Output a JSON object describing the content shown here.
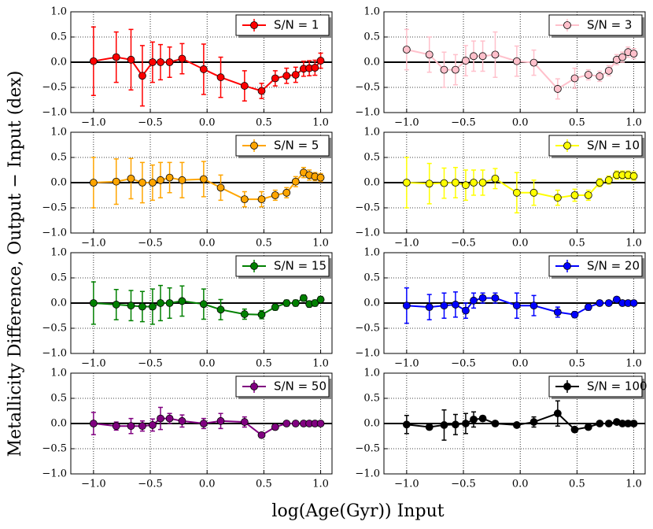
{
  "xlabel": "log(Age(Gyr)) Input",
  "ylabel": "Metallicity Difference, Output − Input (dex)",
  "chart_data": [
    {
      "type": "errorbar",
      "legend": "upper right",
      "grid": true,
      "reference_line": 0,
      "x": [
        -1.0,
        -0.8,
        -0.67,
        -0.57,
        -0.48,
        -0.41,
        -0.33,
        -0.22,
        -0.03,
        0.12,
        0.33,
        0.48,
        0.6,
        0.7,
        0.78,
        0.85,
        0.9,
        0.95,
        1.0
      ],
      "xlim": [
        -1.2,
        1.1
      ],
      "ylim": [
        -1,
        1
      ],
      "xticks": [
        {
          "value": -1,
          "label": "−1.0"
        },
        {
          "value": -0.5,
          "label": "−0.5"
        },
        {
          "value": 0,
          "label": "0.0"
        },
        {
          "value": 0.5,
          "label": "0.5"
        },
        {
          "value": 1,
          "label": "1.0"
        }
      ],
      "yticks": [
        {
          "value": -1,
          "label": "−1.0"
        },
        {
          "value": -0.5,
          "label": "−0.5"
        },
        {
          "value": 0,
          "label": "0.0"
        },
        {
          "value": 0.5,
          "label": "0.5"
        },
        {
          "value": 1,
          "label": "1.0"
        }
      ],
      "series": [
        {
          "name": "S/N = 1",
          "color": "#ff0000",
          "values": [
            0.02,
            0.1,
            0.05,
            -0.27,
            0.0,
            0.0,
            0.0,
            0.07,
            -0.14,
            -0.3,
            -0.47,
            -0.57,
            -0.32,
            -0.27,
            -0.25,
            -0.13,
            -0.12,
            -0.11,
            0.03
          ],
          "errors": [
            0.68,
            0.5,
            0.6,
            0.6,
            0.4,
            0.35,
            0.3,
            0.3,
            0.5,
            0.4,
            0.3,
            0.15,
            0.15,
            0.15,
            0.15,
            0.15,
            0.15,
            0.15,
            0.15
          ]
        }
      ]
    },
    {
      "type": "errorbar",
      "legend": "upper right",
      "grid": true,
      "reference_line": 0,
      "x": [
        -1.0,
        -0.8,
        -0.67,
        -0.57,
        -0.48,
        -0.41,
        -0.33,
        -0.22,
        -0.03,
        0.12,
        0.33,
        0.48,
        0.6,
        0.7,
        0.78,
        0.85,
        0.9,
        0.95,
        1.0
      ],
      "xlim": [
        -1.2,
        1.1
      ],
      "ylim": [
        -1,
        1
      ],
      "xticks": [
        {
          "value": -1,
          "label": "−1.0"
        },
        {
          "value": -0.5,
          "label": "−0.5"
        },
        {
          "value": 0,
          "label": "0.0"
        },
        {
          "value": 0.5,
          "label": "0.5"
        },
        {
          "value": 1,
          "label": "1.0"
        }
      ],
      "yticks": [
        {
          "value": -1,
          "label": "−1.0"
        },
        {
          "value": -0.5,
          "label": "−0.5"
        },
        {
          "value": 0,
          "label": "0.0"
        },
        {
          "value": 0.5,
          "label": "0.5"
        },
        {
          "value": 1,
          "label": "1.0"
        }
      ],
      "series": [
        {
          "name": "S/N = 3",
          "color": "#ffc0cb",
          "values": [
            0.25,
            0.15,
            -0.15,
            -0.15,
            0.03,
            0.12,
            0.12,
            0.15,
            0.02,
            -0.01,
            -0.53,
            -0.32,
            -0.25,
            -0.28,
            -0.17,
            0.05,
            0.1,
            0.2,
            0.17
          ],
          "errors": [
            0.4,
            0.35,
            0.35,
            0.3,
            0.3,
            0.3,
            0.3,
            0.45,
            0.3,
            0.25,
            0.2,
            0.2,
            0.1,
            0.1,
            0.1,
            0.1,
            0.1,
            0.1,
            0.1
          ]
        }
      ]
    },
    {
      "type": "errorbar",
      "legend": "upper right",
      "grid": true,
      "reference_line": 0,
      "x": [
        -1.0,
        -0.8,
        -0.67,
        -0.57,
        -0.48,
        -0.41,
        -0.33,
        -0.22,
        -0.03,
        0.12,
        0.33,
        0.48,
        0.6,
        0.7,
        0.78,
        0.85,
        0.9,
        0.95,
        1.0
      ],
      "xlim": [
        -1.2,
        1.1
      ],
      "ylim": [
        -1,
        1
      ],
      "xticks": [
        {
          "value": -1,
          "label": "−1.0"
        },
        {
          "value": -0.5,
          "label": "−0.5"
        },
        {
          "value": 0,
          "label": "0.0"
        },
        {
          "value": 0.5,
          "label": "0.5"
        },
        {
          "value": 1,
          "label": "1.0"
        }
      ],
      "yticks": [
        {
          "value": -1,
          "label": "−1.0"
        },
        {
          "value": -0.5,
          "label": "−0.5"
        },
        {
          "value": 0,
          "label": "0.0"
        },
        {
          "value": 0.5,
          "label": "0.5"
        },
        {
          "value": 1,
          "label": "1.0"
        }
      ],
      "series": [
        {
          "name": "S/N = 5",
          "color": "#ffa500",
          "values": [
            0.0,
            0.02,
            0.08,
            0.0,
            0.0,
            0.05,
            0.1,
            0.05,
            0.07,
            -0.1,
            -0.33,
            -0.33,
            -0.25,
            -0.2,
            0.02,
            0.2,
            0.15,
            0.12,
            0.1
          ],
          "errors": [
            0.5,
            0.45,
            0.4,
            0.4,
            0.35,
            0.35,
            0.3,
            0.35,
            0.35,
            0.25,
            0.15,
            0.15,
            0.1,
            0.1,
            0.1,
            0.1,
            0.1,
            0.08,
            0.08
          ]
        }
      ]
    },
    {
      "type": "errorbar",
      "legend": "upper right",
      "grid": true,
      "reference_line": 0,
      "x": [
        -1.0,
        -0.8,
        -0.67,
        -0.57,
        -0.48,
        -0.41,
        -0.33,
        -0.22,
        -0.03,
        0.12,
        0.33,
        0.48,
        0.6,
        0.7,
        0.78,
        0.85,
        0.9,
        0.95,
        1.0
      ],
      "xlim": [
        -1.2,
        1.1
      ],
      "ylim": [
        -1,
        1
      ],
      "xticks": [
        {
          "value": -1,
          "label": "−1.0"
        },
        {
          "value": -0.5,
          "label": "−0.5"
        },
        {
          "value": 0,
          "label": "0.0"
        },
        {
          "value": 0.5,
          "label": "0.5"
        },
        {
          "value": 1,
          "label": "1.0"
        }
      ],
      "yticks": [
        {
          "value": -1,
          "label": "−1.0"
        },
        {
          "value": -0.5,
          "label": "−0.5"
        },
        {
          "value": 0,
          "label": "0.0"
        },
        {
          "value": 0.5,
          "label": "0.5"
        },
        {
          "value": 1,
          "label": "1.0"
        }
      ],
      "series": [
        {
          "name": "S/N = 10",
          "color": "#ffff00",
          "values": [
            0.0,
            -0.02,
            -0.01,
            0.0,
            -0.05,
            0.0,
            0.0,
            0.08,
            -0.2,
            -0.2,
            -0.3,
            -0.25,
            -0.25,
            0.0,
            0.05,
            0.15,
            0.15,
            0.15,
            0.13
          ],
          "errors": [
            0.5,
            0.4,
            0.3,
            0.3,
            0.3,
            0.25,
            0.25,
            0.2,
            0.4,
            0.25,
            0.15,
            0.12,
            0.1,
            0.08,
            0.08,
            0.08,
            0.08,
            0.08,
            0.08
          ]
        }
      ]
    },
    {
      "type": "errorbar",
      "legend": "upper right",
      "grid": true,
      "reference_line": 0,
      "x": [
        -1.0,
        -0.8,
        -0.67,
        -0.57,
        -0.48,
        -0.41,
        -0.33,
        -0.22,
        -0.03,
        0.12,
        0.33,
        0.48,
        0.6,
        0.7,
        0.78,
        0.85,
        0.9,
        0.95,
        1.0
      ],
      "xlim": [
        -1.2,
        1.1
      ],
      "ylim": [
        -1,
        1
      ],
      "xticks": [
        {
          "value": -1,
          "label": "−1.0"
        },
        {
          "value": -0.5,
          "label": "−0.5"
        },
        {
          "value": 0,
          "label": "0.0"
        },
        {
          "value": 0.5,
          "label": "0.5"
        },
        {
          "value": 1,
          "label": "1.0"
        }
      ],
      "yticks": [
        {
          "value": -1,
          "label": "−1.0"
        },
        {
          "value": -0.5,
          "label": "−0.5"
        },
        {
          "value": 0,
          "label": "0.0"
        },
        {
          "value": 0.5,
          "label": "0.5"
        },
        {
          "value": 1,
          "label": "1.0"
        }
      ],
      "series": [
        {
          "name": "S/N = 15",
          "color": "#008000",
          "values": [
            0.0,
            -0.03,
            -0.05,
            -0.07,
            -0.07,
            0.0,
            0.0,
            0.04,
            -0.02,
            -0.13,
            -0.22,
            -0.23,
            -0.08,
            0.0,
            0.0,
            0.1,
            -0.02,
            0.0,
            0.07
          ],
          "errors": [
            0.42,
            0.3,
            0.3,
            0.3,
            0.35,
            0.35,
            0.3,
            0.3,
            0.3,
            0.2,
            0.1,
            0.08,
            0.06,
            0.06,
            0.06,
            0.06,
            0.06,
            0.06,
            0.06
          ]
        }
      ]
    },
    {
      "type": "errorbar",
      "legend": "upper right",
      "grid": true,
      "reference_line": 0,
      "x": [
        -1.0,
        -0.8,
        -0.67,
        -0.57,
        -0.48,
        -0.41,
        -0.33,
        -0.22,
        -0.03,
        0.12,
        0.33,
        0.48,
        0.6,
        0.7,
        0.78,
        0.85,
        0.9,
        0.95,
        1.0
      ],
      "xlim": [
        -1.2,
        1.1
      ],
      "ylim": [
        -1,
        1
      ],
      "xticks": [
        {
          "value": -1,
          "label": "−1.0"
        },
        {
          "value": -0.5,
          "label": "−0.5"
        },
        {
          "value": 0,
          "label": "0.0"
        },
        {
          "value": 0.5,
          "label": "0.5"
        },
        {
          "value": 1,
          "label": "1.0"
        }
      ],
      "yticks": [
        {
          "value": -1,
          "label": "−1.0"
        },
        {
          "value": -0.5,
          "label": "−0.5"
        },
        {
          "value": 0,
          "label": "0.0"
        },
        {
          "value": 0.5,
          "label": "0.5"
        },
        {
          "value": 1,
          "label": "1.0"
        }
      ],
      "series": [
        {
          "name": "S/N = 20",
          "color": "#0000ff",
          "values": [
            -0.05,
            -0.08,
            -0.05,
            -0.03,
            -0.15,
            0.05,
            0.1,
            0.1,
            -0.05,
            -0.05,
            -0.18,
            -0.23,
            -0.08,
            0.0,
            0.0,
            0.07,
            0.0,
            0.0,
            0.0
          ],
          "errors": [
            0.35,
            0.25,
            0.25,
            0.25,
            0.15,
            0.15,
            0.1,
            0.1,
            0.25,
            0.2,
            0.1,
            0.06,
            0.06,
            0.05,
            0.05,
            0.05,
            0.05,
            0.05,
            0.05
          ]
        }
      ]
    },
    {
      "type": "errorbar",
      "legend": "upper right",
      "grid": true,
      "reference_line": 0,
      "x": [
        -1.0,
        -0.8,
        -0.67,
        -0.57,
        -0.48,
        -0.41,
        -0.33,
        -0.22,
        -0.03,
        0.12,
        0.33,
        0.48,
        0.6,
        0.7,
        0.78,
        0.85,
        0.9,
        0.95,
        1.0
      ],
      "xlim": [
        -1.2,
        1.1
      ],
      "ylim": [
        -1,
        1
      ],
      "xticks": [
        {
          "value": -1,
          "label": "−1.0"
        },
        {
          "value": -0.5,
          "label": "−0.5"
        },
        {
          "value": 0,
          "label": "0.0"
        },
        {
          "value": 0.5,
          "label": "0.5"
        },
        {
          "value": 1,
          "label": "1.0"
        }
      ],
      "yticks": [
        {
          "value": -1,
          "label": "−1.0"
        },
        {
          "value": -0.5,
          "label": "−0.5"
        },
        {
          "value": 0,
          "label": "0.0"
        },
        {
          "value": 0.5,
          "label": "0.5"
        },
        {
          "value": 1,
          "label": "1.0"
        }
      ],
      "series": [
        {
          "name": "S/N = 50",
          "color": "#800080",
          "values": [
            0.0,
            -0.05,
            -0.05,
            -0.05,
            -0.03,
            0.1,
            0.1,
            0.05,
            0.0,
            0.05,
            0.03,
            -0.23,
            -0.07,
            0.0,
            0.0,
            0.0,
            0.0,
            0.0,
            0.0
          ],
          "errors": [
            0.22,
            0.08,
            0.15,
            0.1,
            0.12,
            0.22,
            0.1,
            0.12,
            0.1,
            0.15,
            0.1,
            0.05,
            0.05,
            0.03,
            0.03,
            0.03,
            0.03,
            0.03,
            0.03
          ]
        }
      ]
    },
    {
      "type": "errorbar",
      "legend": "upper right",
      "grid": true,
      "reference_line": 0,
      "x": [
        -1.0,
        -0.8,
        -0.67,
        -0.57,
        -0.48,
        -0.41,
        -0.33,
        -0.22,
        -0.03,
        0.12,
        0.33,
        0.48,
        0.6,
        0.7,
        0.78,
        0.85,
        0.9,
        0.95,
        1.0
      ],
      "xlim": [
        -1.2,
        1.1
      ],
      "ylim": [
        -1,
        1
      ],
      "xticks": [
        {
          "value": -1,
          "label": "−1.0"
        },
        {
          "value": -0.5,
          "label": "−0.5"
        },
        {
          "value": 0,
          "label": "0.0"
        },
        {
          "value": 0.5,
          "label": "0.5"
        },
        {
          "value": 1,
          "label": "1.0"
        }
      ],
      "yticks": [
        {
          "value": -1,
          "label": "−1.0"
        },
        {
          "value": -0.5,
          "label": "−0.5"
        },
        {
          "value": 0,
          "label": "0.0"
        },
        {
          "value": 0.5,
          "label": "0.5"
        },
        {
          "value": 1,
          "label": "1.0"
        }
      ],
      "series": [
        {
          "name": "S/N = 100",
          "color": "#000000",
          "values": [
            -0.02,
            -0.07,
            -0.03,
            -0.02,
            0.0,
            0.08,
            0.1,
            0.0,
            -0.03,
            0.03,
            0.2,
            -0.12,
            -0.07,
            0.0,
            0.0,
            0.03,
            0.0,
            0.0,
            0.0
          ],
          "errors": [
            0.18,
            0.05,
            0.3,
            0.2,
            0.2,
            0.15,
            0.05,
            0.05,
            0.05,
            0.1,
            0.25,
            0.05,
            0.05,
            0.03,
            0.03,
            0.03,
            0.03,
            0.03,
            0.03
          ]
        }
      ]
    }
  ]
}
